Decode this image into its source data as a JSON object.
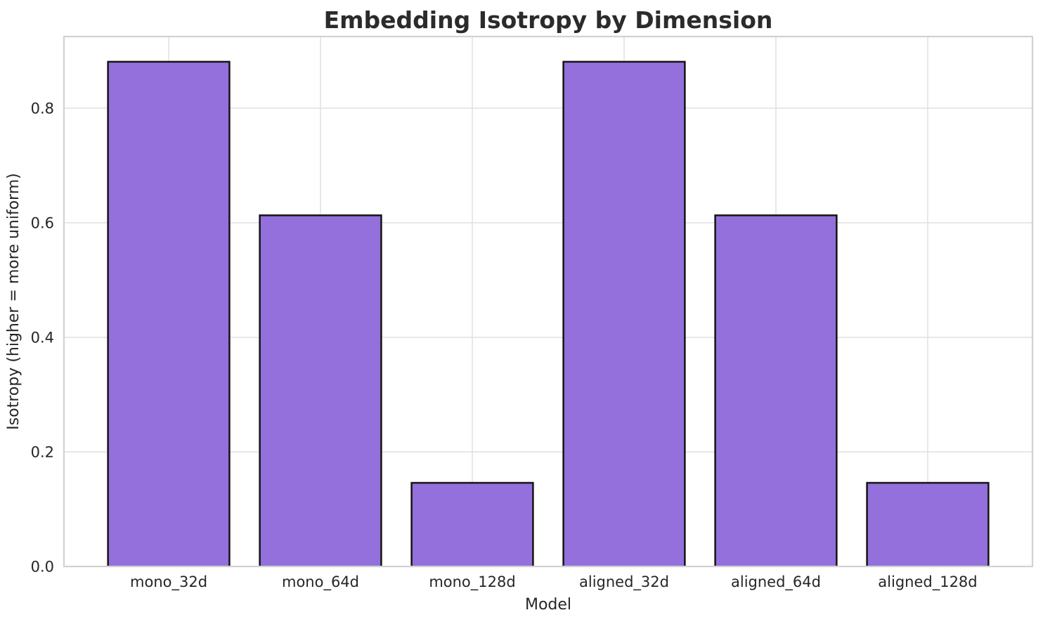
{
  "chart_data": {
    "type": "bar",
    "title": "Embedding Isotropy by Dimension",
    "xlabel": "Model",
    "ylabel": "Isotropy (higher = more uniform)",
    "categories": [
      "mono_32d",
      "mono_64d",
      "mono_128d",
      "aligned_32d",
      "aligned_64d",
      "aligned_128d"
    ],
    "values": [
      0.881,
      0.613,
      0.146,
      0.881,
      0.613,
      0.146
    ],
    "ylim": [
      0,
      0.925
    ],
    "yticks": [
      0.0,
      0.2,
      0.4,
      0.6,
      0.8
    ],
    "ytick_labels": [
      "0.0",
      "0.2",
      "0.4",
      "0.6",
      "0.8"
    ],
    "grid": "both",
    "legend": "none",
    "bar_width_fraction": 0.8,
    "colors": {
      "bar_fill": "#9370db",
      "bar_edge": "#141414",
      "grid": "#e2e2e2",
      "spine": "#d2d2d2",
      "text": "#262626",
      "title": "#2b2b2b",
      "background": "#ffffff"
    }
  }
}
